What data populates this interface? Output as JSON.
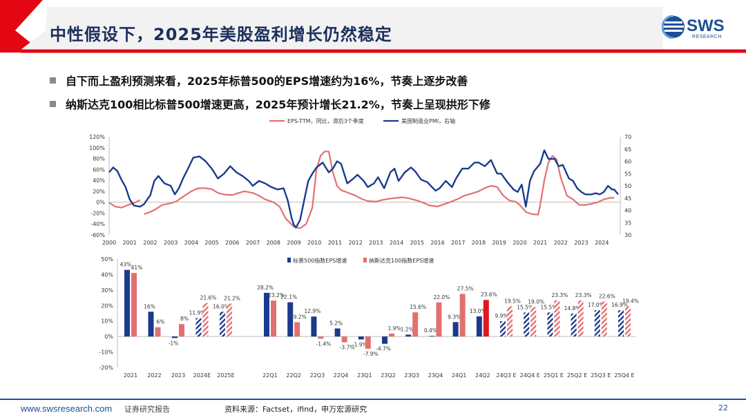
{
  "header": {
    "title": "中性假设下，2025年美股盈利增长仍然稳定"
  },
  "logo": {
    "text": "SWS",
    "sub": "RESEARCH"
  },
  "bullets": [
    "自下而上盈利预测来看，2025年标普500的EPS增速约为16%，节奏上逐步改善",
    "纳斯达克100相比标普500增速更高，2025年预计增长21.2%，节奏上呈现拱形下修"
  ],
  "colors": {
    "navy": "#1a3a8c",
    "salmon": "#e27070",
    "red": "#e0171f",
    "brand_blue": "#1f4e96",
    "brand_red": "#e30613"
  },
  "footer": {
    "url": "www.swsresearch.com",
    "report": "证券研究报告",
    "source": "资料来源：Factset，ifind，申万宏源研究",
    "page": "22"
  },
  "chart_data": [
    {
      "type": "line",
      "legend_position": "top-center",
      "grid": false,
      "x": {
        "min": 2000,
        "max": 2024.9,
        "ticks": [
          "2000",
          "2001",
          "2002",
          "2003",
          "2004",
          "2005",
          "2006",
          "2007",
          "2008",
          "2009",
          "2010",
          "2011",
          "2012",
          "2013",
          "2014",
          "2015",
          "2016",
          "2017",
          "2018",
          "2019",
          "2020",
          "2021",
          "2022",
          "2023",
          "2024"
        ]
      },
      "y_left": {
        "min": -60,
        "max": 120,
        "step": 20,
        "unit": "%"
      },
      "y_right": {
        "min": 30,
        "max": 70,
        "step": 5
      },
      "series": [
        {
          "name": "EPS-TTM，同比，滞后3个季度",
          "axis": "left",
          "color": "#e27070",
          "points": [
            [
              2000.0,
              -1
            ],
            [
              2000.3,
              -8
            ],
            [
              2000.6,
              -10
            ],
            [
              2001.0,
              -4
            ],
            [
              2001.3,
              0
            ],
            [
              2001.5,
              4
            ],
            [
              2001.6,
              null
            ],
            [
              2001.7,
              -22
            ],
            [
              2002.0,
              -18
            ],
            [
              2002.3,
              -12
            ],
            [
              2002.6,
              -5
            ],
            [
              2003.0,
              -2
            ],
            [
              2003.3,
              2
            ],
            [
              2003.6,
              10
            ],
            [
              2004.0,
              20
            ],
            [
              2004.3,
              25
            ],
            [
              2004.6,
              26
            ],
            [
              2005.0,
              24
            ],
            [
              2005.3,
              17
            ],
            [
              2005.6,
              14
            ],
            [
              2006.0,
              13
            ],
            [
              2006.3,
              17
            ],
            [
              2006.6,
              20
            ],
            [
              2007.0,
              17
            ],
            [
              2007.3,
              12
            ],
            [
              2007.6,
              5
            ],
            [
              2008.0,
              0
            ],
            [
              2008.3,
              -8
            ],
            [
              2008.6,
              -30
            ],
            [
              2009.0,
              -45
            ],
            [
              2009.3,
              -48
            ],
            [
              2009.6,
              -40
            ],
            [
              2009.9,
              -10
            ],
            [
              2010.1,
              60
            ],
            [
              2010.3,
              85
            ],
            [
              2010.5,
              93
            ],
            [
              2010.7,
              93
            ],
            [
              2010.9,
              55
            ],
            [
              2011.1,
              30
            ],
            [
              2011.3,
              22
            ],
            [
              2011.6,
              18
            ],
            [
              2012.0,
              12
            ],
            [
              2012.3,
              6
            ],
            [
              2012.6,
              2
            ],
            [
              2013.0,
              1
            ],
            [
              2013.3,
              4
            ],
            [
              2013.6,
              6
            ],
            [
              2014.0,
              8
            ],
            [
              2014.3,
              9
            ],
            [
              2014.6,
              7
            ],
            [
              2015.0,
              3
            ],
            [
              2015.3,
              -1
            ],
            [
              2015.6,
              -6
            ],
            [
              2016.0,
              -8
            ],
            [
              2016.3,
              -4
            ],
            [
              2016.6,
              0
            ],
            [
              2017.0,
              6
            ],
            [
              2017.3,
              12
            ],
            [
              2017.6,
              15
            ],
            [
              2018.0,
              20
            ],
            [
              2018.3,
              26
            ],
            [
              2018.6,
              30
            ],
            [
              2018.9,
              28
            ],
            [
              2019.2,
              12
            ],
            [
              2019.5,
              3
            ],
            [
              2019.8,
              1
            ],
            [
              2020.0,
              -5
            ],
            [
              2020.3,
              -18
            ],
            [
              2020.6,
              -22
            ],
            [
              2020.9,
              -23
            ],
            [
              2021.0,
              -5
            ],
            [
              2021.2,
              40
            ],
            [
              2021.4,
              73
            ],
            [
              2021.6,
              85
            ],
            [
              2021.8,
              78
            ],
            [
              2022.0,
              45
            ],
            [
              2022.3,
              12
            ],
            [
              2022.6,
              5
            ],
            [
              2022.9,
              -5
            ],
            [
              2023.2,
              -5
            ],
            [
              2023.5,
              -3
            ],
            [
              2023.8,
              0
            ],
            [
              2024.1,
              5
            ],
            [
              2024.4,
              8
            ],
            [
              2024.6,
              8
            ]
          ]
        },
        {
          "name": "美国制造业PMI，右轴",
          "axis": "right",
          "color": "#1a3a8c",
          "points": [
            [
              2000.0,
              55.5
            ],
            [
              2000.2,
              57.5
            ],
            [
              2000.4,
              56
            ],
            [
              2000.6,
              52.5
            ],
            [
              2000.8,
              49.5
            ],
            [
              2001.0,
              44.5
            ],
            [
              2001.2,
              42
            ],
            [
              2001.5,
              41.5
            ],
            [
              2001.7,
              42.5
            ],
            [
              2001.9,
              45
            ],
            [
              2002.0,
              46
            ],
            [
              2002.2,
              52
            ],
            [
              2002.4,
              54
            ],
            [
              2002.7,
              51
            ],
            [
              2003.0,
              50
            ],
            [
              2003.2,
              46.5
            ],
            [
              2003.4,
              49
            ],
            [
              2003.6,
              53
            ],
            [
              2003.9,
              58
            ],
            [
              2004.1,
              61.5
            ],
            [
              2004.4,
              62
            ],
            [
              2004.7,
              60
            ],
            [
              2005.0,
              57
            ],
            [
              2005.3,
              53
            ],
            [
              2005.6,
              55
            ],
            [
              2005.9,
              58
            ],
            [
              2006.2,
              55.5
            ],
            [
              2006.5,
              54
            ],
            [
              2006.8,
              52
            ],
            [
              2007.0,
              50
            ],
            [
              2007.3,
              52
            ],
            [
              2007.6,
              51
            ],
            [
              2007.9,
              49.5
            ],
            [
              2008.2,
              48.5
            ],
            [
              2008.5,
              49
            ],
            [
              2008.7,
              44
            ],
            [
              2008.9,
              36.5
            ],
            [
              2009.0,
              34
            ],
            [
              2009.1,
              33
            ],
            [
              2009.3,
              36
            ],
            [
              2009.5,
              44
            ],
            [
              2009.7,
              52
            ],
            [
              2009.9,
              55
            ],
            [
              2010.1,
              57.5
            ],
            [
              2010.4,
              59.5
            ],
            [
              2010.7,
              55.5
            ],
            [
              2010.9,
              57
            ],
            [
              2011.1,
              60
            ],
            [
              2011.3,
              59
            ],
            [
              2011.6,
              51
            ],
            [
              2011.9,
              53
            ],
            [
              2012.1,
              54.5
            ],
            [
              2012.4,
              52
            ],
            [
              2012.6,
              49.5
            ],
            [
              2012.9,
              51
            ],
            [
              2013.1,
              53.5
            ],
            [
              2013.4,
              49
            ],
            [
              2013.7,
              55.5
            ],
            [
              2013.9,
              57
            ],
            [
              2014.1,
              52
            ],
            [
              2014.4,
              55.5
            ],
            [
              2014.7,
              57.5
            ],
            [
              2014.9,
              56
            ],
            [
              2015.2,
              52.5
            ],
            [
              2015.5,
              51.5
            ],
            [
              2015.9,
              48
            ],
            [
              2016.1,
              49
            ],
            [
              2016.4,
              52
            ],
            [
              2016.7,
              49.5
            ],
            [
              2016.9,
              53
            ],
            [
              2017.2,
              57
            ],
            [
              2017.5,
              57
            ],
            [
              2017.8,
              59.5
            ],
            [
              2018.0,
              59.5
            ],
            [
              2018.3,
              58
            ],
            [
              2018.6,
              60.5
            ],
            [
              2018.9,
              55
            ],
            [
              2019.1,
              55
            ],
            [
              2019.4,
              51.5
            ],
            [
              2019.7,
              48.5
            ],
            [
              2019.9,
              47.5
            ],
            [
              2020.1,
              50.5
            ],
            [
              2020.3,
              41.5
            ],
            [
              2020.5,
              52
            ],
            [
              2020.7,
              56
            ],
            [
              2021.0,
              59
            ],
            [
              2021.2,
              64.5
            ],
            [
              2021.4,
              61
            ],
            [
              2021.7,
              61
            ],
            [
              2021.9,
              58
            ],
            [
              2022.1,
              58.5
            ],
            [
              2022.4,
              53
            ],
            [
              2022.6,
              52
            ],
            [
              2022.8,
              49
            ],
            [
              2023.0,
              47.5
            ],
            [
              2023.2,
              46.5
            ],
            [
              2023.5,
              46.5
            ],
            [
              2023.7,
              47
            ],
            [
              2023.9,
              46.5
            ],
            [
              2024.1,
              47.5
            ],
            [
              2024.3,
              50
            ],
            [
              2024.5,
              48.5
            ],
            [
              2024.6,
              48.5
            ],
            [
              2024.8,
              46.5
            ]
          ]
        }
      ]
    },
    {
      "type": "bar",
      "legend_position": "top",
      "grid": false,
      "y": {
        "min": -20,
        "max": 50,
        "step": 10,
        "unit": "%"
      },
      "categories": [
        "2021",
        "2022",
        "2023",
        "2024E",
        "2025E",
        "22Q1",
        "22Q2",
        "22Q3",
        "22Q4",
        "23Q1",
        "23Q2",
        "23Q3",
        "23Q4",
        "24Q1",
        "24Q2",
        "24Q3 E",
        "24Q4 E",
        "25Q1 E",
        "25Q2 E",
        "25Q3 E",
        "25Q4 E"
      ],
      "series": [
        {
          "name": "标普500指数EPS增速",
          "color": "#1a3a8c",
          "values": [
            43,
            16,
            -1,
            11.9,
            16.0,
            28.2,
            22.1,
            12.9,
            5.2,
            -1.9,
            -4.7,
            1.2,
            0.4,
            9.3,
            13.0,
            9.9,
            15.5,
            15.5,
            14.8,
            17.0,
            16.9
          ],
          "labels": [
            "43%",
            "16%",
            "-1%",
            "11.9%",
            "16.0%",
            "28.2%",
            "22.1%",
            "12.9%",
            "5.2%",
            "-1.9%",
            "-4.7%",
            "1.2%",
            "0.4%",
            "9.3%",
            "13.0%",
            "9.9%",
            "15.5%",
            "15.5%",
            "14.8%",
            "17.0%",
            "16.9%"
          ]
        },
        {
          "name": "纳斯达克100指数EPS增速",
          "color": "#e27070",
          "values": [
            41,
            6,
            8,
            21.6,
            21.2,
            23.2,
            9.2,
            -1.4,
            -3.7,
            -7.9,
            1.9,
            15.6,
            22.0,
            27.5,
            23.6,
            19.5,
            19.0,
            23.3,
            23.3,
            22.6,
            19.4
          ],
          "labels": [
            "41%",
            "6%",
            "8%",
            "21.6%",
            "21.2%",
            "23.2%",
            "9.2%",
            "-1.4%",
            "-3.7%",
            "-7.9%",
            "1.9%",
            "15.6%",
            "22.0%",
            "27.5%",
            "23.6%",
            "19.5%",
            "19.0%",
            "23.3%",
            "23.3%",
            "22.6%",
            "19.4%"
          ]
        }
      ],
      "forecast_categories": [
        "2024E",
        "2025E",
        "24Q3 E",
        "24Q4 E",
        "25Q1 E",
        "25Q2 E",
        "25Q3 E",
        "25Q4 E"
      ],
      "highlight": {
        "category": "24Q2",
        "series": 1,
        "color": "#e0171f"
      }
    }
  ]
}
